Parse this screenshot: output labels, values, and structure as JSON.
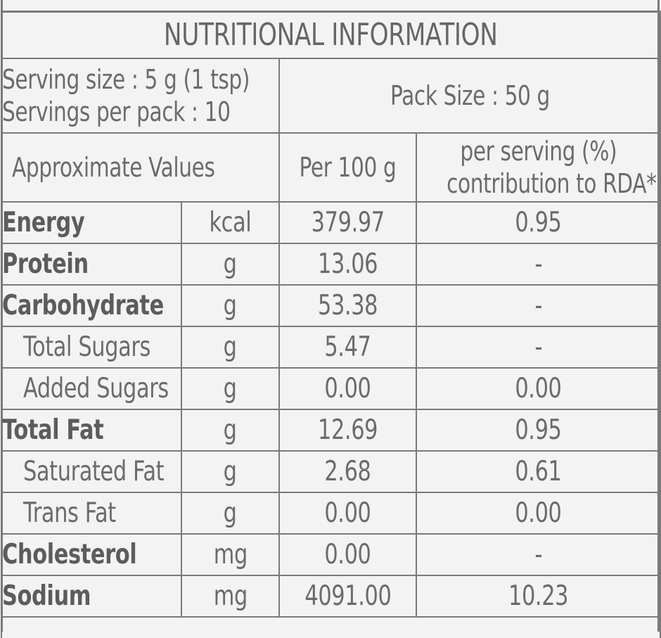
{
  "title": "NUTRITIONAL INFORMATION",
  "serving": {
    "size": "Serving size : 5 g (1 tsp)",
    "per_pack": "Servings per pack : 10",
    "pack_size": "Pack Size : 50 g"
  },
  "headers": {
    "approx": "Approximate Values",
    "per100": "Per 100 g",
    "rda_line1": "per serving (%)",
    "rda_line2": "contribution to RDA*"
  },
  "rows": [
    {
      "name": "Energy",
      "unit": "kcal",
      "per100": "379.97",
      "rda": "0.95",
      "bold": true
    },
    {
      "name": "Protein",
      "unit": "g",
      "per100": "13.06",
      "rda": "-",
      "bold": true
    },
    {
      "name": "Carbohydrate",
      "unit": "g",
      "per100": "53.38",
      "rda": "-",
      "bold": true
    },
    {
      "name": "Total Sugars",
      "unit": "g",
      "per100": "5.47",
      "rda": "-",
      "bold": false
    },
    {
      "name": "Added Sugars",
      "unit": "g",
      "per100": "0.00",
      "rda": "0.00",
      "bold": false
    },
    {
      "name": "Total Fat",
      "unit": "g",
      "per100": "12.69",
      "rda": "0.95",
      "bold": true
    },
    {
      "name": "Saturated Fat",
      "unit": "g",
      "per100": "2.68",
      "rda": "0.61",
      "bold": false
    },
    {
      "name": "Trans Fat",
      "unit": "g",
      "per100": "0.00",
      "rda": "0.00",
      "bold": false
    },
    {
      "name": "Cholesterol",
      "unit": "mg",
      "per100": "0.00",
      "rda": "-",
      "bold": true
    },
    {
      "name": "Sodium",
      "unit": "mg",
      "per100": "4091.00",
      "rda": "10.23",
      "bold": true
    }
  ],
  "colors": {
    "background": "#f3f3f3",
    "text": "#6b6b6b",
    "border": "#7a7a7a"
  }
}
